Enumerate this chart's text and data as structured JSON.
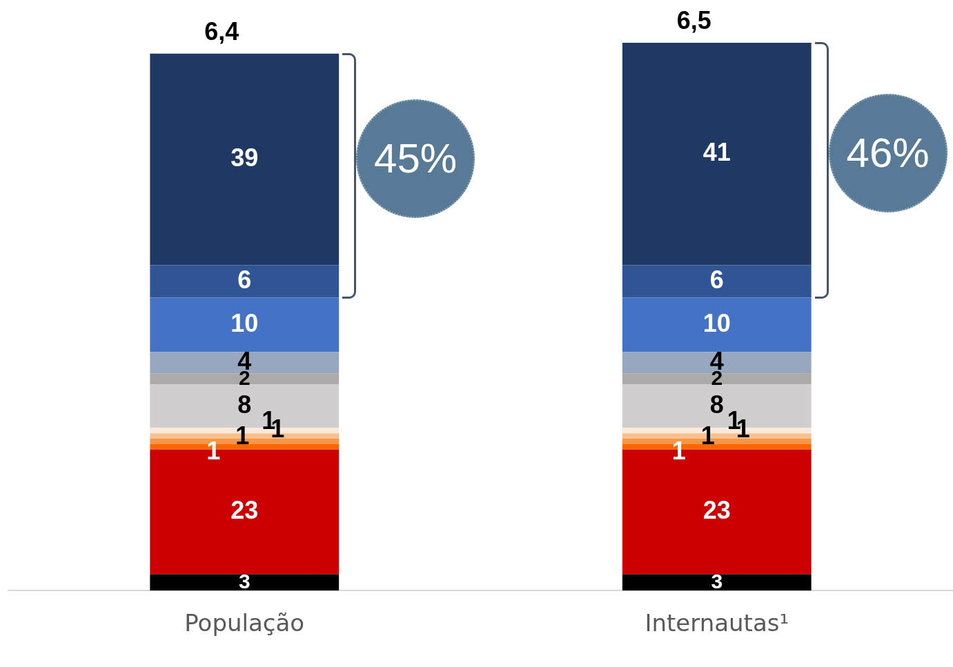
{
  "chart_data": {
    "type": "bar",
    "stacked": true,
    "data_labels": true,
    "legend": false,
    "grid": false,
    "categories": [
      "População",
      "Internautas¹"
    ],
    "series": [
      {
        "color": "#000000",
        "values": [
          3,
          3
        ]
      },
      {
        "color": "#cc0000",
        "values": [
          23,
          23
        ]
      },
      {
        "color": "#ff6600",
        "values": [
          1,
          1
        ]
      },
      {
        "color": "#f79646",
        "values": [
          1,
          1
        ]
      },
      {
        "color": "#fabf8f",
        "values": [
          1,
          1
        ]
      },
      {
        "color": "#fde9d9",
        "values": [
          1,
          1
        ]
      },
      {
        "color": "#d0cece",
        "values": [
          8,
          8
        ]
      },
      {
        "color": "#aeaaaa",
        "values": [
          2,
          2
        ]
      },
      {
        "color": "#97a7bf",
        "values": [
          4,
          4
        ]
      },
      {
        "color": "#4472c4",
        "values": [
          10,
          10
        ]
      },
      {
        "color": "#2f5597",
        "values": [
          6,
          6
        ]
      },
      {
        "color": "#203864",
        "values": [
          39,
          41
        ]
      }
    ],
    "annotations": [
      {
        "text": "6,4",
        "x": "População",
        "y": 99
      },
      {
        "text": "6,5",
        "x": "Internautas¹",
        "y": 101
      },
      "45%",
      "46%"
    ]
  }
}
